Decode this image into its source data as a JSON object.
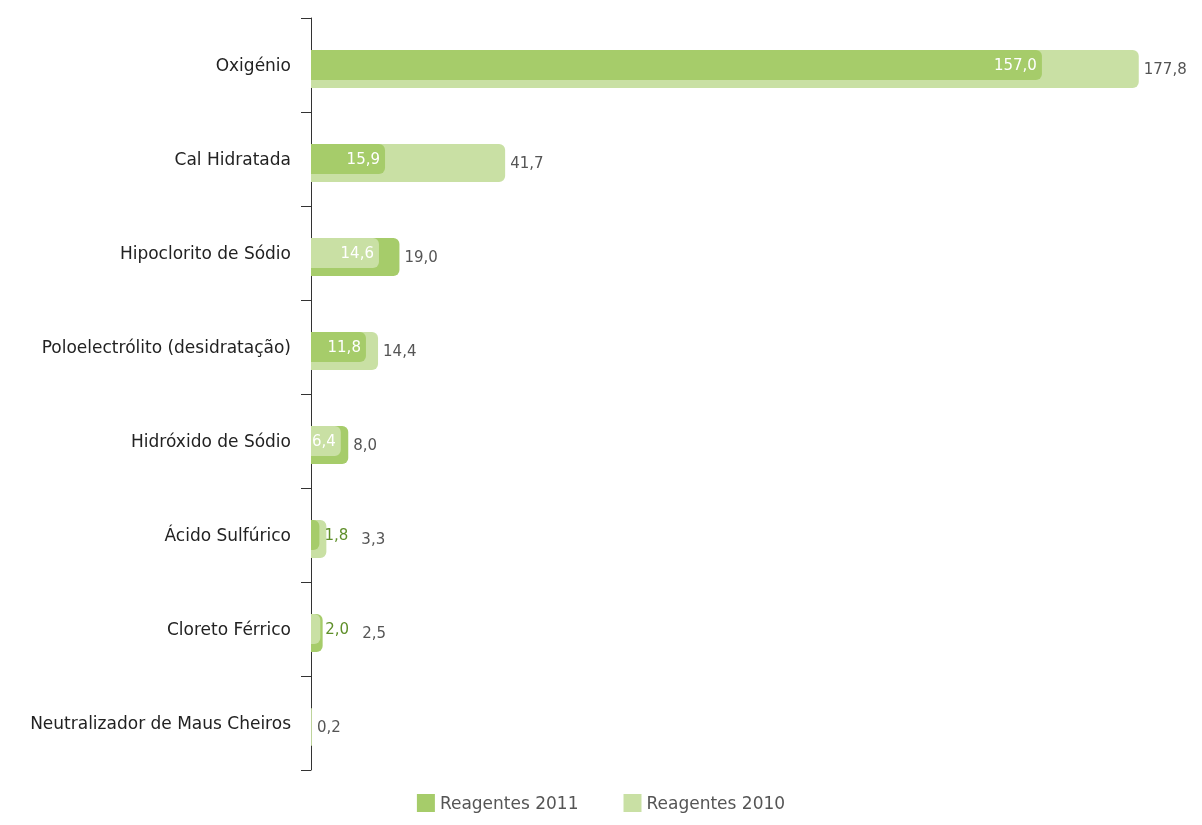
{
  "chart_data": {
    "type": "bar",
    "orientation": "horizontal",
    "categories": [
      "Oxigénio",
      "Cal Hidratada",
      "Hipoclorito de Sódio",
      "Poloelectrólito (desidratação)",
      "Hidróxido de Sódio",
      "Ácido Sulfúrico",
      "Cloreto Férrico",
      "Neutralizador de Maus Cheiros"
    ],
    "series": [
      {
        "name": "Reagentes 2011",
        "color": "#a6cc6a",
        "values": [
          157.0,
          15.9,
          19.0,
          11.8,
          8.0,
          1.8,
          2.5,
          null
        ],
        "value_labels": [
          "157,0",
          "15,9",
          "19,0",
          "11,8",
          "8,0",
          "1,8",
          "2,5",
          null
        ]
      },
      {
        "name": "Reagentes 2010",
        "color": "#c9e0a4",
        "values": [
          177.8,
          41.7,
          14.6,
          14.4,
          6.4,
          3.3,
          2.0,
          0.2
        ],
        "value_labels": [
          "177,8",
          "41,7",
          "14,6",
          "14,4",
          "6,4",
          "3,3",
          "2,0",
          "0,2"
        ]
      }
    ],
    "data_labels": true,
    "legend": "bottom",
    "grid": false
  }
}
